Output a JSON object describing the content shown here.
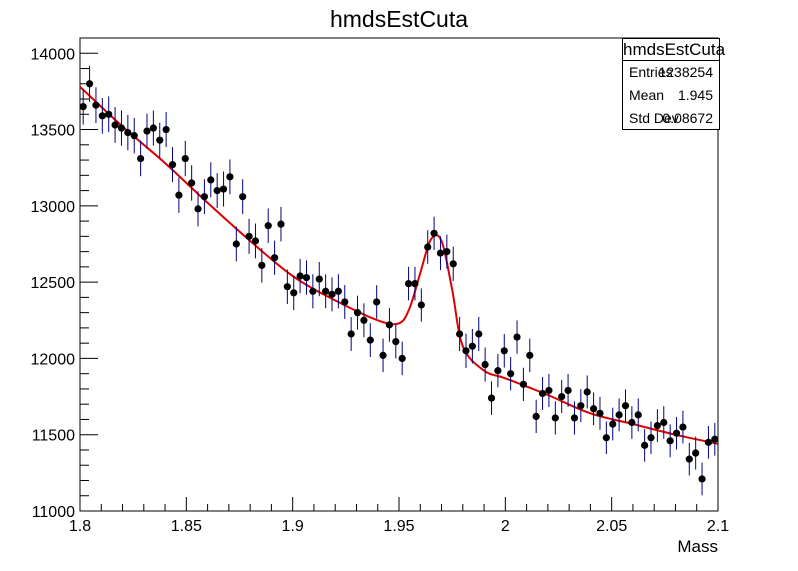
{
  "title": "hmdsEstCuta",
  "stats": {
    "title": "hmdsEstCuta",
    "rows": [
      {
        "label": "Entries",
        "value": "1238254"
      },
      {
        "label": "Mean",
        "value": "1.945"
      },
      {
        "label": "Std Dev",
        "value": "0.08672"
      }
    ]
  },
  "chart_data": {
    "type": "scatter",
    "title": "hmdsEstCuta",
    "xlabel": "Mass",
    "ylabel": "",
    "xlim": [
      1.8,
      2.1
    ],
    "ylim": [
      11000,
      14100
    ],
    "x_ticks": [
      "1.8",
      "1.85",
      "1.9",
      "1.95",
      "2",
      "2.05",
      "2.1"
    ],
    "y_ticks": [
      "11000",
      "11500",
      "12000",
      "12500",
      "13000",
      "13500",
      "14000"
    ],
    "bin_width": 0.003,
    "points": {
      "x_start": 1.8015,
      "errors": [
        118,
        118,
        117,
        117,
        117,
        117,
        116,
        116,
        116,
        116,
        115,
        115,
        115,
        115,
        115,
        116,
        116,
        116,
        115,
        114,
        115,
        114,
        115,
        114,
        114,
        114,
        115,
        114,
        113,
        113,
        112,
        113,
        113,
        113,
        112,
        112,
        112,
        112,
        111,
        111,
        112,
        111,
        111,
        111,
        111,
        111,
        110,
        110,
        111,
        110,
        110,
        110,
        110,
        109,
        110,
        109,
        111,
        111,
        112,
        112,
        113,
        113,
        112,
        112,
        110,
        109,
        110,
        109,
        109,
        109,
        110,
        109,
        108,
        109,
        109,
        108,
        108,
        109,
        108,
        108,
        107,
        108,
        107,
        107,
        108,
        107,
        107,
        108,
        107,
        107,
        107,
        107,
        108,
        107,
        107,
        107,
        108,
        107,
        107,
        107
      ],
      "values": [
        13650,
        13800,
        13660,
        13590,
        13600,
        13530,
        13510,
        13480,
        13460,
        13310,
        13490,
        13510,
        13430,
        13500,
        13270,
        13070,
        13310,
        13150,
        12980,
        13060,
        13170,
        13100,
        13110,
        13190,
        12750,
        13060,
        12800,
        12770,
        12610,
        12870,
        12660,
        12880,
        12470,
        12430,
        12540,
        12530,
        12440,
        12520,
        12440,
        12420,
        12440,
        12370,
        12160,
        12300,
        12250,
        12120,
        12370,
        12020,
        12220,
        12110,
        12000,
        12490,
        12490,
        12350,
        12730,
        12820,
        12690,
        12700,
        12620,
        12160,
        12050,
        12080,
        12160,
        11960,
        11740,
        11920,
        12050,
        11900,
        12140,
        11830,
        12020,
        11620,
        11770,
        11790,
        11610,
        11750,
        11790,
        11610,
        11690,
        11780,
        11670,
        11640,
        11480,
        11570,
        11630,
        11690,
        11580,
        11630,
        11430,
        11480,
        11560,
        11580,
        11460,
        11510,
        11550,
        11340,
        11380,
        11210,
        11450,
        11470
      ]
    },
    "fit_curve": {
      "x": [
        1.8,
        1.82,
        1.84,
        1.86,
        1.88,
        1.9,
        1.92,
        1.94,
        1.95,
        1.955,
        1.96,
        1.965,
        1.97,
        1.975,
        1.98,
        1.99,
        2.0,
        2.02,
        2.04,
        2.06,
        2.08,
        2.1
      ],
      "y": [
        13780,
        13520,
        13280,
        13020,
        12770,
        12540,
        12380,
        12250,
        12230,
        12330,
        12560,
        12780,
        12770,
        12450,
        12080,
        11920,
        11870,
        11760,
        11640,
        11570,
        11500,
        11440
      ]
    },
    "colors": {
      "points": "#000000",
      "errors": "#000080",
      "fit": "#dd0000"
    },
    "grid": false,
    "legend": "top-right"
  }
}
